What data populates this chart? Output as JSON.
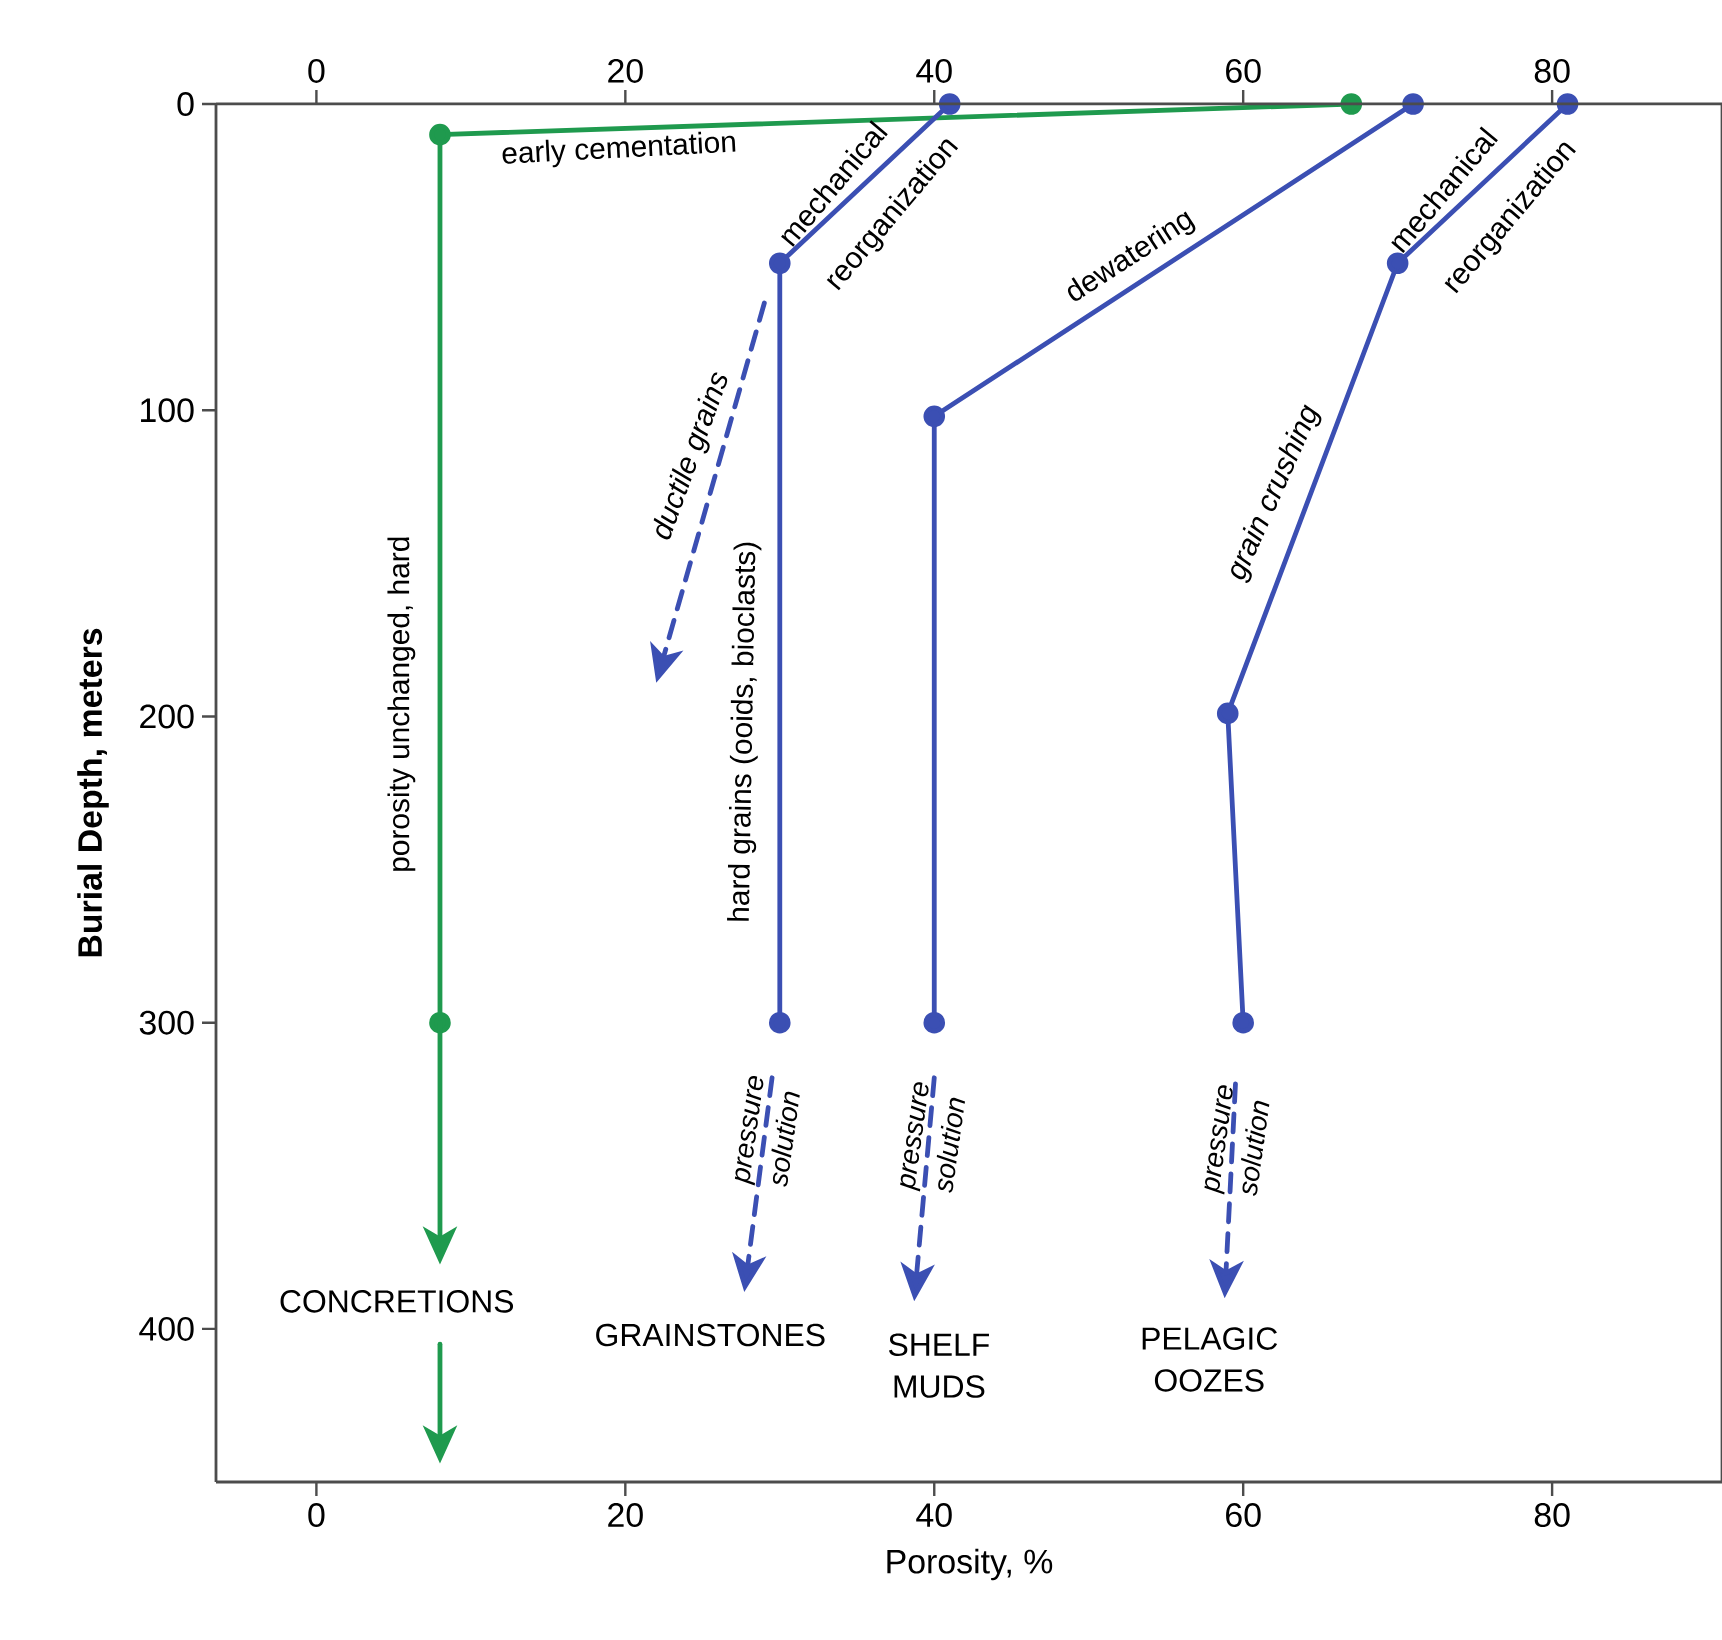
{
  "chart_data": {
    "type": "line",
    "xlabel": "Porosity, %",
    "ylabel": "Burial Depth, meters",
    "xlim": [
      -6.5,
      91
    ],
    "ylim": [
      450,
      0
    ],
    "xticks": [
      0,
      20,
      40,
      60,
      80
    ],
    "yticks": [
      0,
      100,
      200,
      300,
      400
    ],
    "x2lim": [
      -6.5,
      91
    ],
    "x2ticks": [
      0,
      20,
      40,
      60,
      80
    ],
    "grid": false,
    "series": [
      {
        "color": "#1f9a4e",
        "marker": "circle",
        "line_style": "solid",
        "x": [
          67,
          8,
          8
        ],
        "values": [
          0,
          10,
          300
        ]
      },
      {
        "color": "#3b4fb3",
        "marker": "circle",
        "line_style": "solid",
        "x": [
          41,
          30,
          30
        ],
        "values": [
          0,
          52,
          300
        ]
      },
      {
        "color": "#3b4fb3",
        "marker": "circle",
        "line_style": "solid",
        "x": [
          71,
          40,
          40
        ],
        "values": [
          0,
          102,
          300
        ]
      },
      {
        "color": "#3b4fb3",
        "marker": "circle",
        "line_style": "solid",
        "x": [
          81,
          70,
          59,
          60
        ],
        "values": [
          0,
          52,
          199,
          300
        ]
      }
    ],
    "annotations": [
      "early cementation",
      "mechanical",
      "reorganization",
      "dewatering",
      "mechanical",
      "reorganization",
      "ductile grains",
      "hard grains (ooids, bioclasts)",
      "porosity unchanged, hard",
      "grain crushing",
      "pressure solution",
      "pressure solution",
      "pressure solution",
      "CONCRETIONS",
      "GRAINSTONES",
      "SHELF MUDS",
      "PELAGIC OOZES"
    ]
  }
}
